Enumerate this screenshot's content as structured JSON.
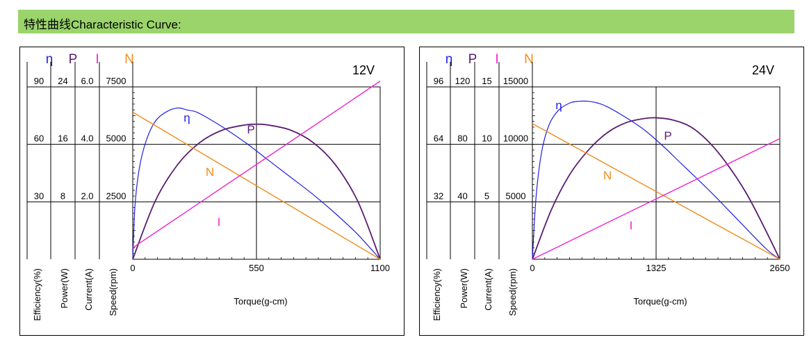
{
  "header": {
    "title": "特性曲线Characteristic Curve:"
  },
  "colors": {
    "header_bg": "#9ad46b",
    "efficiency": "#1f1fe0",
    "power": "#5a1d6e",
    "current": "#ee22cc",
    "speed": "#f08c1a"
  },
  "chart_data": [
    {
      "type": "line",
      "title": "12V",
      "xlabel": "Torque(g-cm)",
      "x_ticks": [
        "0",
        "550",
        "1100"
      ],
      "xlim": [
        0,
        1100
      ],
      "axis_symbols": [
        "η",
        "P",
        "I",
        "N"
      ],
      "axis_labels": [
        "Efficiency(%)",
        "Power(W)",
        "Current(A)",
        "Speed(rpm)"
      ],
      "axis_ticks": [
        [
          "90",
          "60",
          "30"
        ],
        [
          "24",
          "16",
          "8"
        ],
        [
          "6.0",
          "4.0",
          "2.0"
        ],
        [
          "7500",
          "5000",
          "2500"
        ]
      ],
      "axis_ranges": {
        "efficiency": [
          0,
          90
        ],
        "power": [
          0,
          24
        ],
        "current": [
          0,
          6.0
        ],
        "speed": [
          0,
          7500
        ]
      },
      "series": [
        {
          "name": "η",
          "axis": "efficiency",
          "x": [
            0,
            10,
            30,
            60,
            100,
            150,
            200,
            240,
            280,
            330,
            400,
            500,
            600,
            700,
            800,
            900,
            1000,
            1100
          ],
          "y": [
            0,
            28,
            48,
            62,
            72,
            77,
            79,
            78,
            77,
            74,
            69,
            61,
            52,
            43,
            34,
            24,
            13,
            0
          ]
        },
        {
          "name": "P",
          "axis": "power",
          "x": [
            0,
            100,
            200,
            300,
            400,
            500,
            550,
            600,
            700,
            800,
            900,
            1000,
            1100
          ],
          "y": [
            0,
            8.1,
            13.2,
            16.3,
            18.0,
            18.7,
            18.8,
            18.7,
            18.0,
            16.3,
            13.2,
            8.1,
            0
          ]
        },
        {
          "name": "N",
          "axis": "speed",
          "x": [
            0,
            1100
          ],
          "y": [
            6400,
            0
          ]
        },
        {
          "name": "I",
          "axis": "current",
          "x": [
            0,
            1100
          ],
          "y": [
            0.4,
            6.2
          ]
        }
      ]
    },
    {
      "type": "line",
      "title": "24V",
      "xlabel": "Torque(g-cm)",
      "x_ticks": [
        "0",
        "1325",
        "2650"
      ],
      "xlim": [
        0,
        2650
      ],
      "axis_symbols": [
        "η",
        "P",
        "I",
        "N"
      ],
      "axis_labels": [
        "Efficiency(%)",
        "Power(W)",
        "Current(A)",
        "Speed(rpm)"
      ],
      "axis_ticks": [
        [
          "96",
          "64",
          "32"
        ],
        [
          "120",
          "80",
          "40"
        ],
        [
          "15",
          "10",
          "5"
        ],
        [
          "15000",
          "10000",
          "5000"
        ]
      ],
      "axis_ranges": {
        "efficiency": [
          0,
          96
        ],
        "power": [
          0,
          120
        ],
        "current": [
          0,
          15
        ],
        "speed": [
          0,
          15000
        ]
      },
      "series": [
        {
          "name": "η",
          "axis": "efficiency",
          "x": [
            0,
            40,
            100,
            180,
            280,
            400,
            500,
            600,
            700,
            800,
            1000,
            1200,
            1400,
            1600,
            1900,
            2200,
            2500,
            2650
          ],
          "y": [
            0,
            35,
            60,
            75,
            83,
            87,
            88,
            88,
            87,
            85,
            79,
            72,
            63,
            53,
            38,
            22,
            6,
            0
          ]
        },
        {
          "name": "P",
          "axis": "power",
          "x": [
            0,
            200,
            400,
            600,
            800,
            1000,
            1200,
            1325,
            1500,
            1700,
            1900,
            2100,
            2300,
            2500,
            2650
          ],
          "y": [
            0,
            34,
            59,
            76,
            88,
            95,
            98,
            98.5,
            97,
            92,
            81,
            65,
            45,
            20,
            0
          ]
        },
        {
          "name": "N",
          "axis": "speed",
          "x": [
            0,
            2650
          ],
          "y": [
            11800,
            0
          ]
        },
        {
          "name": "I",
          "axis": "current",
          "x": [
            0,
            2650
          ],
          "y": [
            0,
            10.5
          ]
        }
      ]
    }
  ]
}
